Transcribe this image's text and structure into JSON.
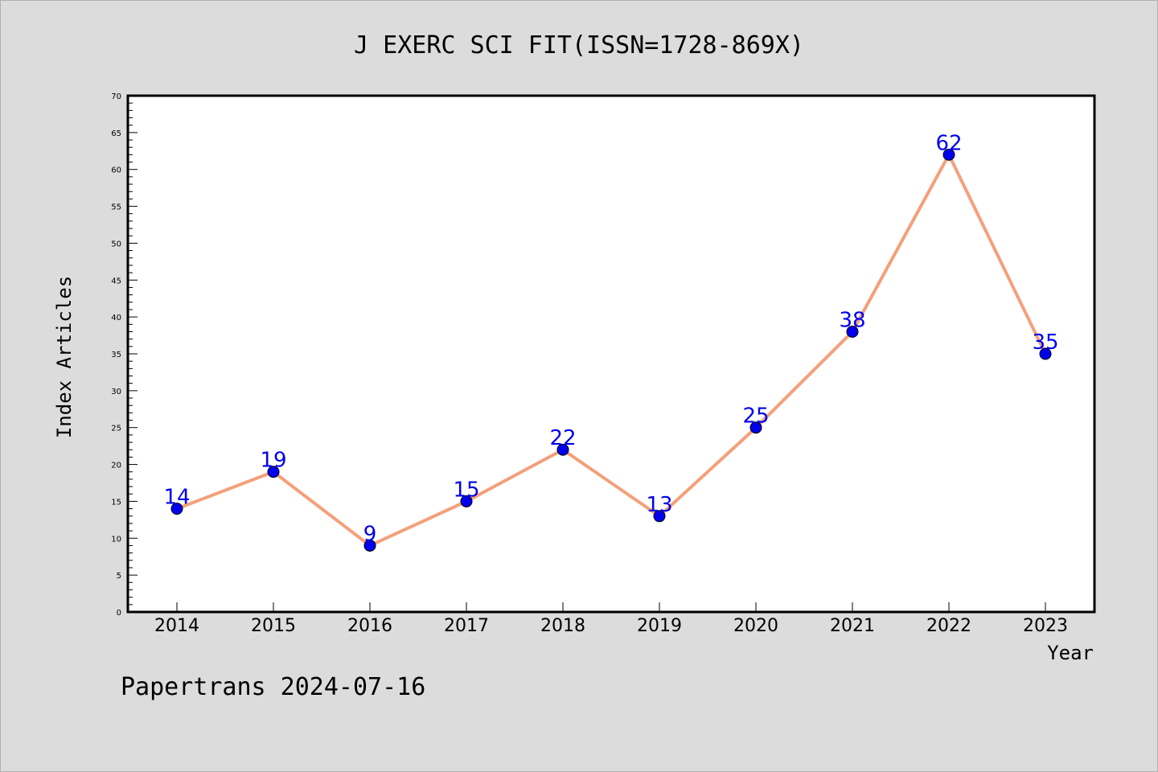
{
  "chart_data": {
    "type": "line",
    "title": "J EXERC SCI FIT(ISSN=1728-869X)",
    "xlabel": "Year",
    "ylabel": "Index Articles",
    "categories": [
      "2014",
      "2015",
      "2016",
      "2017",
      "2018",
      "2019",
      "2020",
      "2021",
      "2022",
      "2023"
    ],
    "values": [
      14,
      19,
      9,
      15,
      22,
      13,
      25,
      38,
      62,
      35
    ],
    "ylim": [
      0,
      70
    ],
    "ytick_step": 5,
    "yminor_step": 1,
    "grid": false,
    "legend": "none",
    "line_color": "#f4a07a",
    "marker_color": "#0000ee",
    "label_color": "#0000ee",
    "plot_background": "#ffffff",
    "page_background": "#dcdcdc"
  },
  "footer": {
    "credit": "Papertrans 2024-07-16"
  }
}
